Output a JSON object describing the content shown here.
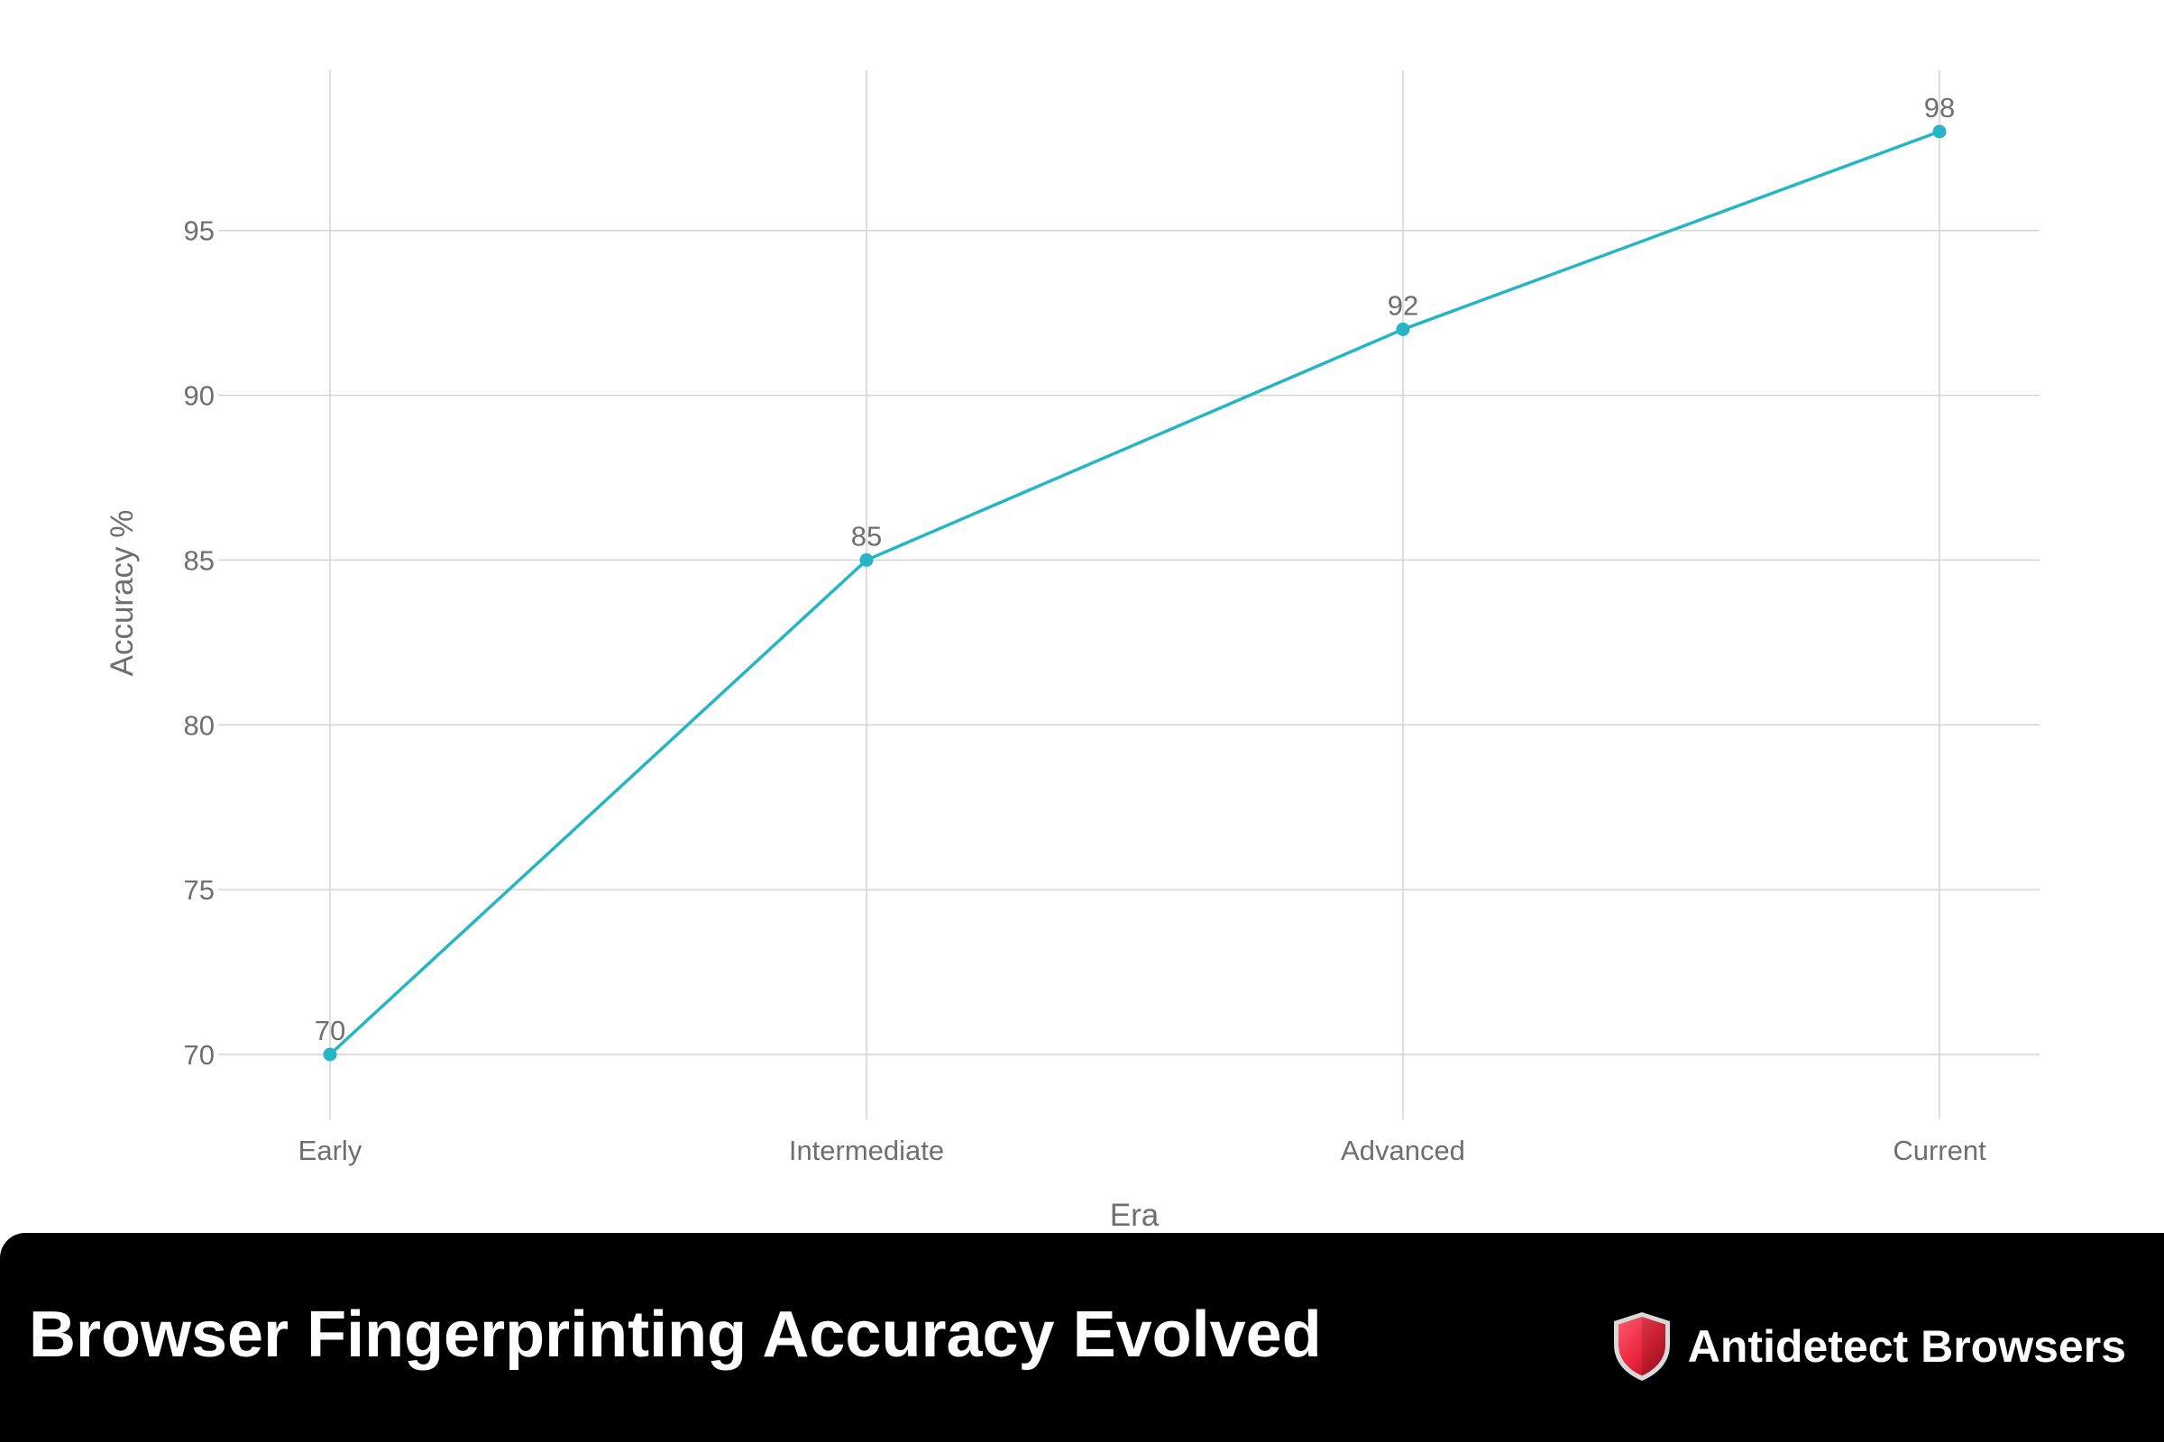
{
  "chart_data": {
    "type": "line",
    "title": "Browser Fingerprinting Accuracy Evolved",
    "xlabel": "Era",
    "ylabel": "Accuracy %",
    "categories": [
      "Early",
      "Intermediate",
      "Advanced",
      "Current"
    ],
    "series": [
      {
        "values": [
          70,
          85,
          92,
          98
        ],
        "color": "#26b5c4"
      }
    ],
    "ylim": [
      68,
      100
    ],
    "yticks": [
      70,
      75,
      80,
      85,
      90,
      95
    ],
    "grid": true,
    "legend": "none"
  },
  "footer": {
    "title": "Browser Fingerprinting Accuracy Evolved",
    "brand_name": "Antidetect Browsers",
    "logo_icon": "shield-icon",
    "background_color": "#000000",
    "logo_color": "#e8243b"
  }
}
